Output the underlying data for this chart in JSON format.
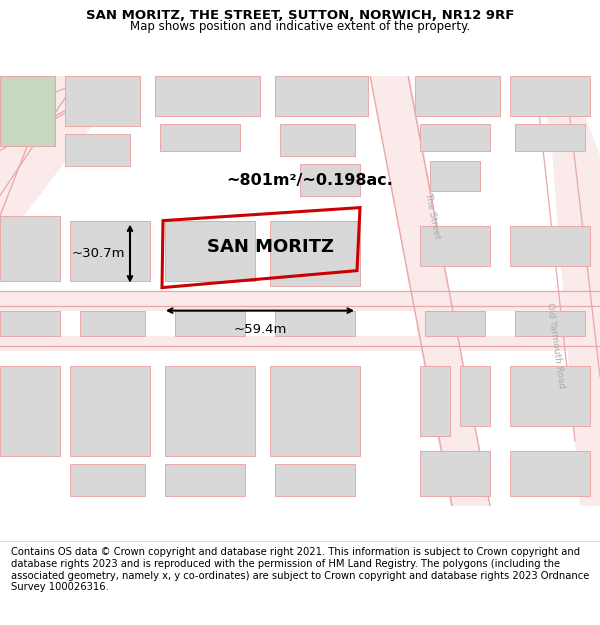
{
  "title_line1": "SAN MORITZ, THE STREET, SUTTON, NORWICH, NR12 9RF",
  "title_line2": "Map shows position and indicative extent of the property.",
  "property_label": "SAN MORITZ",
  "area_label": "~801m²/~0.198ac.",
  "width_label": "~59.4m",
  "height_label": "~30.7m",
  "footer_text": "Contains OS data © Crown copyright and database right 2021. This information is subject to Crown copyright and database rights 2023 and is reproduced with the permission of HM Land Registry. The polygons (including the associated geometry, namely x, y co-ordinates) are subject to Crown copyright and database rights 2023 Ordnance Survey 100026316.",
  "map_bg": "#fdfafa",
  "road_line_color": "#e8a8a8",
  "building_fill": "#d8d8d8",
  "building_edge": "#e8a8a8",
  "plot_edge": "#cc0000",
  "green_color": "#c8d8c0",
  "road_label_color": "#aaaaaa",
  "title_fontsize": 9.5,
  "subtitle_fontsize": 8.5,
  "footer_fontsize": 7.2,
  "property_fontsize": 13,
  "area_fontsize": 11.5,
  "measure_fontsize": 9.5,
  "road_label_fontsize": 6.5
}
